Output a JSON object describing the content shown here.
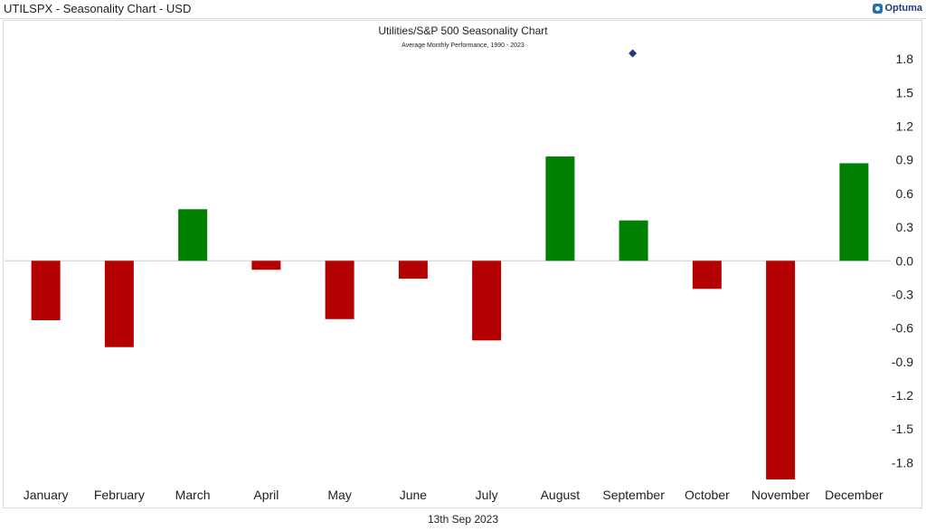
{
  "window": {
    "title": "UTILSPX - Seasonality Chart - USD",
    "brand": "Optuma"
  },
  "footer": {
    "date": "13th Sep 2023"
  },
  "chart_data": {
    "type": "bar",
    "title": "Utilities/S&P 500 Seasonality Chart",
    "subtitle": "Average Monthly Performance, 1990 - 2023",
    "categories": [
      "January",
      "February",
      "March",
      "April",
      "May",
      "June",
      "July",
      "August",
      "September",
      "October",
      "November",
      "December"
    ],
    "values": [
      -0.53,
      -0.77,
      0.46,
      -0.08,
      -0.52,
      -0.16,
      -0.71,
      0.93,
      0.36,
      -0.25,
      -1.95,
      0.87
    ],
    "marker": {
      "category": "September",
      "value": 1.85,
      "shape": "diamond",
      "color": "#1f3b73"
    },
    "yticks": [
      "1.8",
      "1.5",
      "1.2",
      "0.9",
      "0.6",
      "0.3",
      "0.0",
      "-0.3",
      "-0.6",
      "-0.9",
      "-1.2",
      "-1.5",
      "-1.8"
    ],
    "ytick_values": [
      1.8,
      1.5,
      1.2,
      0.9,
      0.6,
      0.3,
      0.0,
      -0.3,
      -0.6,
      -0.9,
      -1.2,
      -1.5,
      -1.8
    ],
    "ylim": [
      -1.95,
      2.1
    ],
    "y_axis_side": "right",
    "grid": false,
    "colors": {
      "positive": "#008000",
      "negative": "#b30000",
      "zero_line": "#cccccc"
    }
  }
}
